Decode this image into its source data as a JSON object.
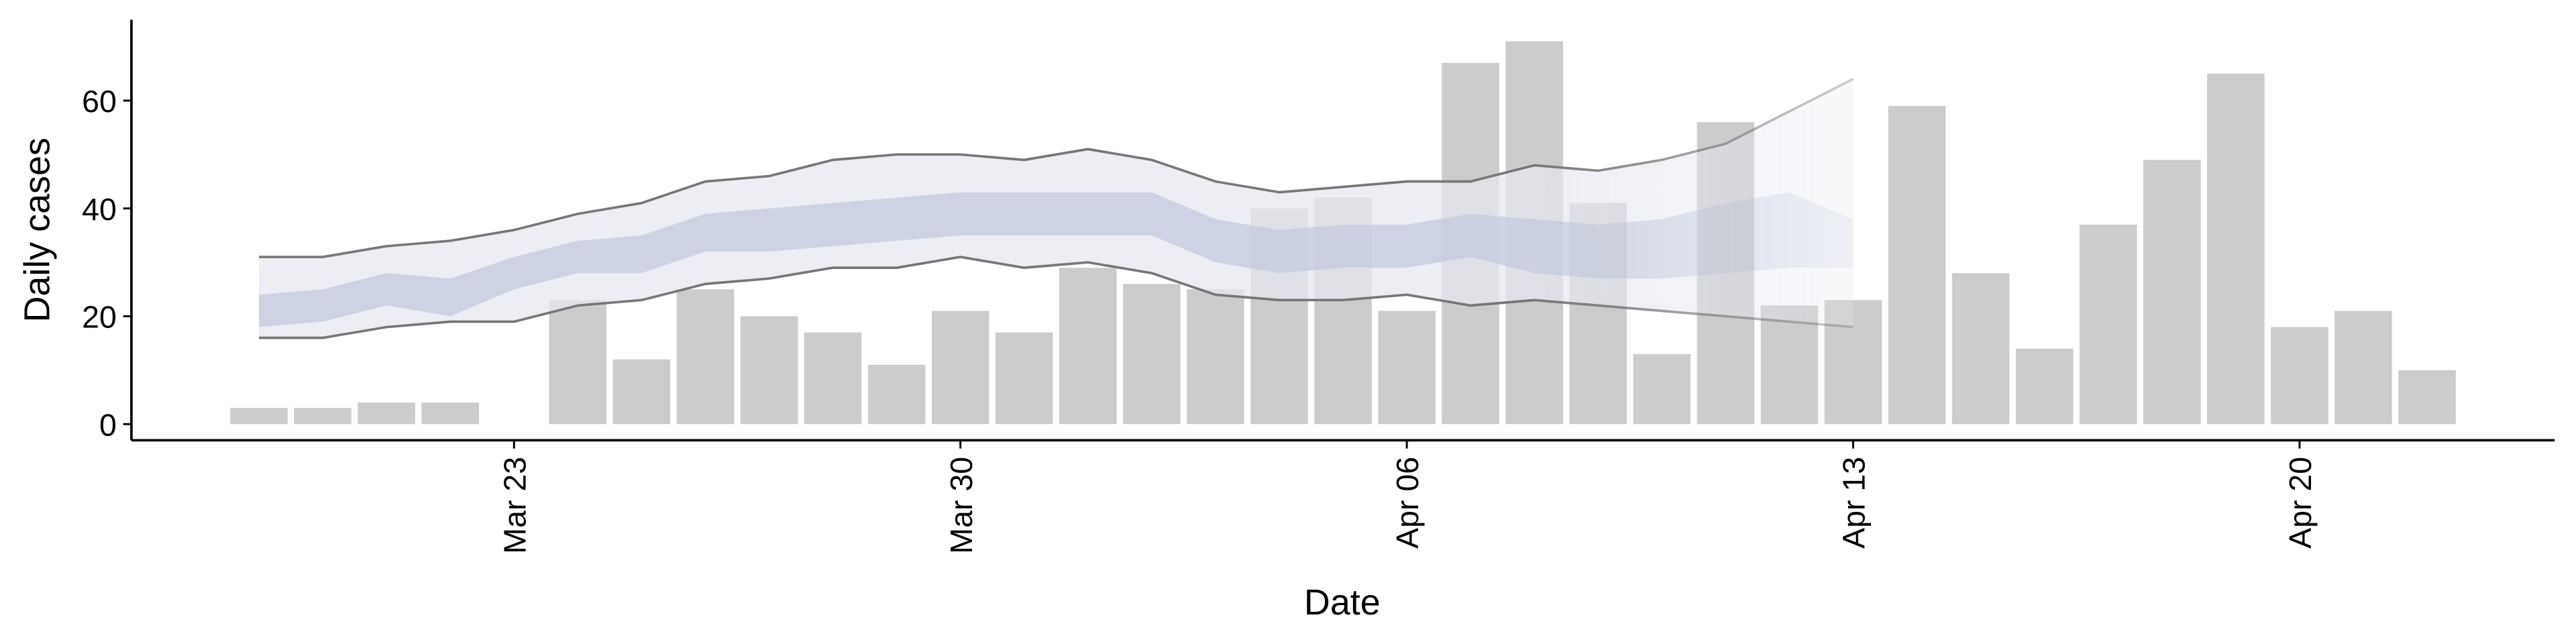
{
  "chart_data": {
    "type": "bar",
    "xlabel": "Date",
    "ylabel": "Daily cases",
    "x": [
      "Mar 19",
      "Mar 20",
      "Mar 21",
      "Mar 22",
      "Mar 23",
      "Mar 24",
      "Mar 25",
      "Mar 26",
      "Mar 27",
      "Mar 28",
      "Mar 29",
      "Mar 30",
      "Mar 31",
      "Apr 01",
      "Apr 02",
      "Apr 03",
      "Apr 04",
      "Apr 05",
      "Apr 06",
      "Apr 07",
      "Apr 08",
      "Apr 09",
      "Apr 10",
      "Apr 11",
      "Apr 12",
      "Apr 13",
      "Apr 14",
      "Apr 15",
      "Apr 16",
      "Apr 17",
      "Apr 18",
      "Apr 19",
      "Apr 20",
      "Apr 21",
      "Apr 22"
    ],
    "values": [
      3,
      3,
      4,
      4,
      null,
      23,
      12,
      25,
      20,
      17,
      11,
      21,
      17,
      29,
      26,
      25,
      40,
      42,
      21,
      67,
      71,
      41,
      13,
      56,
      22,
      23,
      59,
      28,
      14,
      37,
      49,
      65,
      18,
      21,
      10
    ],
    "color": "#cccccc",
    "bands": {
      "x": [
        "Mar 19",
        "Mar 20",
        "Mar 21",
        "Mar 22",
        "Mar 23",
        "Mar 24",
        "Mar 25",
        "Mar 26",
        "Mar 27",
        "Mar 28",
        "Mar 29",
        "Mar 30",
        "Mar 31",
        "Apr 01",
        "Apr 02",
        "Apr 03",
        "Apr 04",
        "Apr 05",
        "Apr 06",
        "Apr 07",
        "Apr 08",
        "Apr 09",
        "Apr 10",
        "Apr 11",
        "Apr 12",
        "Apr 13"
      ],
      "outer": {
        "color": "#e6e8f0",
        "line_color": "#777777",
        "lower": [
          16,
          16,
          18,
          19,
          19,
          22,
          23,
          26,
          27,
          29,
          29,
          31,
          29,
          30,
          28,
          24,
          23,
          23,
          24,
          22,
          23,
          22,
          21,
          20,
          19,
          18
        ],
        "upper": [
          31,
          31,
          33,
          34,
          36,
          39,
          41,
          45,
          46,
          49,
          50,
          50,
          49,
          51,
          49,
          45,
          43,
          44,
          45,
          45,
          48,
          47,
          49,
          52,
          58,
          64
        ]
      },
      "inner": {
        "color": "#c3c9dc",
        "lower": [
          18,
          19,
          22,
          20,
          25,
          28,
          28,
          32,
          32,
          33,
          34,
          35,
          35,
          35,
          35,
          30,
          28,
          29,
          29,
          31,
          28,
          27,
          27,
          28,
          29,
          29
        ],
        "upper": [
          24,
          25,
          28,
          27,
          31,
          34,
          35,
          39,
          40,
          41,
          42,
          43,
          43,
          43,
          43,
          38,
          36,
          37,
          37,
          39,
          38,
          37,
          38,
          41,
          43,
          38
        ]
      }
    },
    "xlim": [
      "Mar 17",
      "Apr 24"
    ],
    "xticks": [
      "Mar 23",
      "Mar 30",
      "Apr 06",
      "Apr 13",
      "Apr 20"
    ],
    "ylim": [
      -3,
      75
    ],
    "yticks": [
      0,
      20,
      40,
      60
    ]
  }
}
